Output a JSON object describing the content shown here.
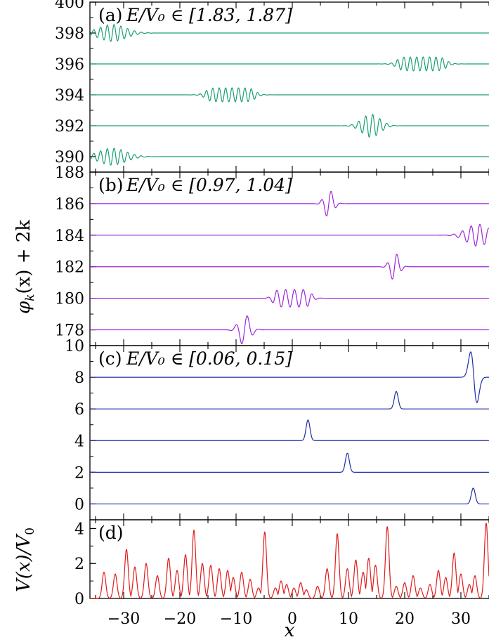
{
  "chart_data": [
    {
      "type": "line",
      "panel_label": "(a)",
      "title": "E/V₀ ∈ [1.83, 1.87]",
      "xlim": [
        -36,
        35
      ],
      "ylim": [
        389,
        400
      ],
      "yticks": [
        "400",
        "398",
        "396",
        "394",
        "392",
        "390"
      ],
      "color": "#1a9e77",
      "series": [
        {
          "offset": 398,
          "center": -32,
          "width": 2.4,
          "amp": 0.55,
          "freq": 5.2
        },
        {
          "offset": 396,
          "center": 23,
          "width": 4.5,
          "amp": 0.45,
          "freq": 5.5,
          "flat": true
        },
        {
          "offset": 394,
          "center": -11,
          "width": 4.5,
          "amp": 0.45,
          "freq": 5.5,
          "flat": true
        },
        {
          "offset": 392,
          "center": 14,
          "width": 1.6,
          "amp": 0.75,
          "freq": 5.0
        },
        {
          "offset": 390,
          "center": -32,
          "width": 2.4,
          "amp": 0.55,
          "freq": 5.2
        }
      ]
    },
    {
      "type": "line",
      "panel_label": "(b)",
      "title": "E/V₀ ∈ [0.97, 1.04]",
      "xlim": [
        -36,
        35
      ],
      "ylim": [
        177,
        188
      ],
      "yticks": [
        "188",
        "186",
        "184",
        "182",
        "180",
        "178"
      ],
      "color": "#9b27d9",
      "series": [
        {
          "offset": 186,
          "center": 6.5,
          "width": 0.8,
          "amp": 0.9,
          "freq": 3.5
        },
        {
          "offset": 184,
          "center": 33,
          "width": 2.0,
          "amp": 0.7,
          "freq": 4.0
        },
        {
          "offset": 182,
          "center": 18.2,
          "width": 0.8,
          "amp": 0.9,
          "freq": 3.5
        },
        {
          "offset": 180,
          "center": 0,
          "width": 3.5,
          "amp": 0.55,
          "freq": 4.0,
          "flat": true
        },
        {
          "offset": 178,
          "center": -8.5,
          "width": 1.0,
          "amp": 1.0,
          "freq": 3.0
        }
      ]
    },
    {
      "type": "line",
      "panel_label": "(c)",
      "title": "E/V₀ ∈ [0.06, 0.15]",
      "xlim": [
        -36,
        35
      ],
      "ylim": [
        -1,
        10
      ],
      "yticks": [
        "10",
        "8",
        "6",
        "4",
        "2",
        "0"
      ],
      "color": "#1d2da6",
      "series": [
        {
          "offset": 8,
          "center": 32.3,
          "kind": "dipole",
          "amp": 1.2
        },
        {
          "offset": 6,
          "center": 18.5,
          "kind": "peak",
          "amp": 1.1
        },
        {
          "offset": 4,
          "center": 2.8,
          "kind": "peak",
          "amp": 1.3
        },
        {
          "offset": 2,
          "center": 9.8,
          "kind": "peak",
          "amp": 1.2
        },
        {
          "offset": 0,
          "center": 32.2,
          "kind": "peak",
          "amp": 1.0
        }
      ]
    },
    {
      "type": "line",
      "panel_label": "(d)",
      "title": "",
      "xlim": [
        -36,
        35
      ],
      "ylim": [
        0,
        4.5
      ],
      "yticks": [
        "4",
        "2",
        "0"
      ],
      "color": "#e01b1b",
      "potential_peaks": [
        [
          -33.5,
          1.5
        ],
        [
          -31.5,
          1.4
        ],
        [
          -29.5,
          2.8
        ],
        [
          -28,
          1.8
        ],
        [
          -26,
          2.0
        ],
        [
          -24,
          1.3
        ],
        [
          -22,
          2.3
        ],
        [
          -20.5,
          1.6
        ],
        [
          -19,
          2.5
        ],
        [
          -17.5,
          3.9
        ],
        [
          -16,
          2.0
        ],
        [
          -14.5,
          1.9
        ],
        [
          -13,
          1.7
        ],
        [
          -11.5,
          1.6
        ],
        [
          -10.5,
          1.2
        ],
        [
          -9,
          1.5
        ],
        [
          -7.5,
          1.1
        ],
        [
          -6,
          0.6
        ],
        [
          -4.9,
          3.8
        ],
        [
          -3,
          0.6
        ],
        [
          -2,
          1.0
        ],
        [
          -1,
          0.8
        ],
        [
          0.3,
          0.6
        ],
        [
          1.5,
          0.9
        ],
        [
          2.5,
          0.5
        ],
        [
          4.5,
          0.7
        ],
        [
          6.2,
          1.7
        ],
        [
          8,
          3.7
        ],
        [
          9.8,
          1.7
        ],
        [
          11.3,
          2.2
        ],
        [
          12.6,
          1.5
        ],
        [
          13.6,
          2.3
        ],
        [
          14.8,
          1.9
        ],
        [
          16.9,
          4.1
        ],
        [
          18.5,
          0.7
        ],
        [
          20,
          0.9
        ],
        [
          21.5,
          1.3
        ],
        [
          22.8,
          0.6
        ],
        [
          24.5,
          0.8
        ],
        [
          26,
          1.6
        ],
        [
          27.3,
          1.2
        ],
        [
          28.8,
          2.6
        ],
        [
          30,
          1.4
        ],
        [
          31.5,
          0.8
        ],
        [
          32.5,
          1.3
        ],
        [
          34.5,
          4.3
        ]
      ]
    }
  ],
  "x_axis": {
    "ticks": [
      -30,
      -20,
      -10,
      0,
      10,
      20,
      30
    ],
    "tick_labels": [
      "−30",
      "−20",
      "−10",
      "0",
      "10",
      "20",
      "30"
    ],
    "label": "x"
  },
  "ylabel_main": "φ",
  "ylabel_main_sub": "k",
  "ylabel_main_rest": "(x) + 2k",
  "ylabel_d": "V(x)/V",
  "ylabel_d_sub": "0"
}
